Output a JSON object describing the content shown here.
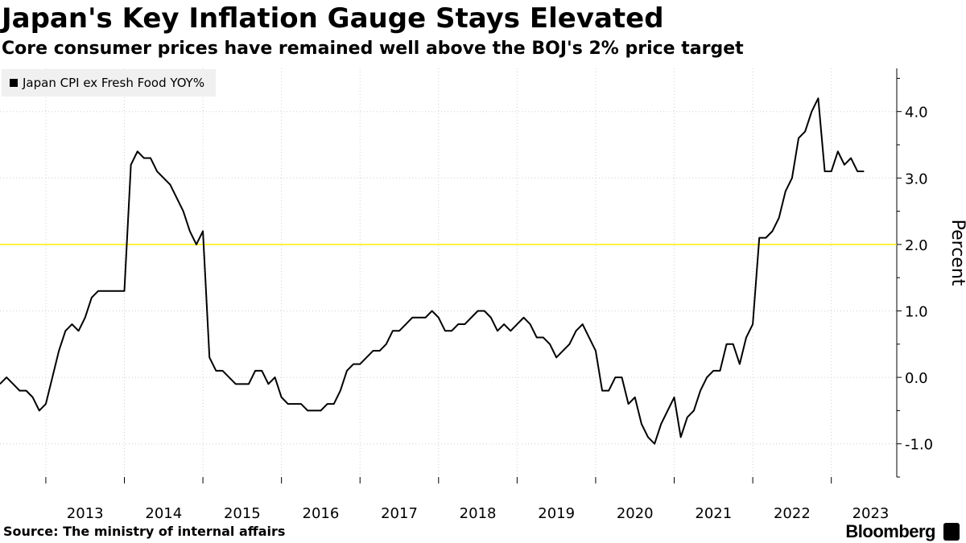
{
  "chart_data": {
    "type": "line",
    "title": "Japan's Key Inflation Gauge Stays Elevated",
    "subtitle": "Core consumer prices have remained well above the BOJ's 2% price target",
    "ylabel": "Percent",
    "ylim": [
      -1.5,
      4.65
    ],
    "y_ticks": [
      "4.0",
      "3.0",
      "2.0",
      "1.0",
      "0.0",
      "-1.0"
    ],
    "x_ticks": [
      "2013",
      "2014",
      "2015",
      "2016",
      "2017",
      "2018",
      "2019",
      "2020",
      "2021",
      "2022",
      "2023"
    ],
    "x_start": "2012-06",
    "x_end": "2023-11",
    "reference_line": {
      "y": 2.0,
      "color": "#ffee00"
    },
    "legend_position": "top-left",
    "grid": "horizontal-dotted",
    "series": [
      {
        "name": "Japan CPI ex Fresh Food YOY%",
        "color": "#000000",
        "x_start": "2012-06",
        "values": [
          -0.1,
          0.0,
          -0.1,
          -0.2,
          -0.2,
          -0.3,
          -0.5,
          -0.4,
          0.0,
          0.4,
          0.7,
          0.8,
          0.7,
          0.9,
          1.2,
          1.3,
          1.3,
          1.3,
          1.3,
          1.3,
          3.2,
          3.4,
          3.3,
          3.3,
          3.1,
          3.0,
          2.9,
          2.7,
          2.5,
          2.2,
          2.0,
          2.2,
          0.3,
          0.1,
          0.1,
          0.0,
          -0.1,
          -0.1,
          -0.1,
          0.1,
          0.1,
          -0.1,
          0.0,
          -0.3,
          -0.4,
          -0.4,
          -0.4,
          -0.5,
          -0.5,
          -0.5,
          -0.4,
          -0.4,
          -0.2,
          0.1,
          0.2,
          0.2,
          0.3,
          0.4,
          0.4,
          0.5,
          0.7,
          0.7,
          0.8,
          0.9,
          0.9,
          0.9,
          1.0,
          0.9,
          0.7,
          0.7,
          0.8,
          0.8,
          0.9,
          1.0,
          1.0,
          0.9,
          0.7,
          0.8,
          0.7,
          0.8,
          0.9,
          0.8,
          0.6,
          0.6,
          0.5,
          0.3,
          0.4,
          0.5,
          0.7,
          0.8,
          0.6,
          0.4,
          -0.2,
          -0.2,
          0.0,
          0.0,
          -0.4,
          -0.3,
          -0.7,
          -0.9,
          -1.0,
          -0.7,
          -0.5,
          -0.3,
          -0.9,
          -0.6,
          -0.5,
          -0.2,
          0.0,
          0.1,
          0.1,
          0.5,
          0.5,
          0.2,
          0.6,
          0.8,
          2.1,
          2.1,
          2.2,
          2.4,
          2.8,
          3.0,
          3.6,
          3.7,
          4.0,
          4.2,
          3.1,
          3.1,
          3.4,
          3.2,
          3.3,
          3.1,
          3.1
        ]
      }
    ]
  },
  "source": "Source: The ministry of internal affairs",
  "brand": "Bloomberg"
}
